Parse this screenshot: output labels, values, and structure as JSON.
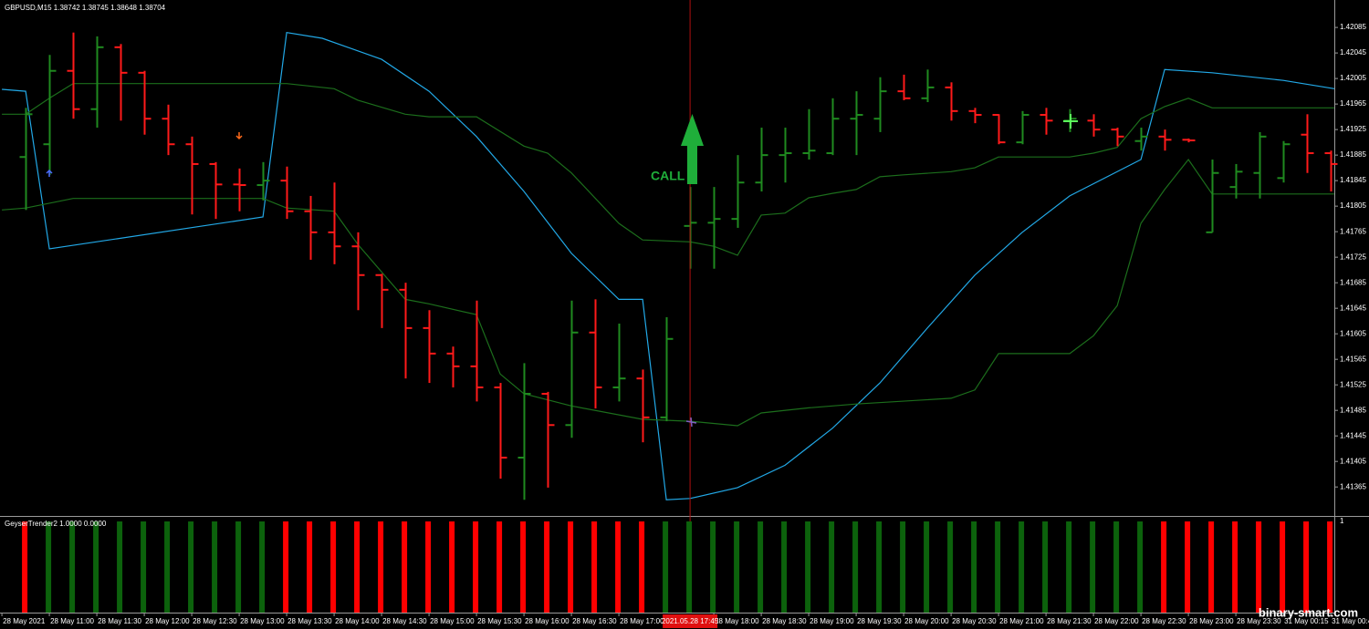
{
  "chart_data": [
    {
      "type": "ohlc",
      "title": "GBPUSD,M15  1.38742 1.38745 1.38648 1.38704",
      "up_color": "#1f8a1f",
      "down_color": "#ff1a1a",
      "xlim": [
        -1.08,
        55.15
      ],
      "ylim": [
        1.41321,
        1.42128
      ],
      "yticks": [
        1.42085,
        1.42045,
        1.42005,
        1.41965,
        1.41925,
        1.41885,
        1.41845,
        1.41805,
        1.41765,
        1.41725,
        1.41685,
        1.41645,
        1.41605,
        1.41565,
        1.41525,
        1.41485,
        1.41445,
        1.41405,
        1.41365
      ],
      "xticks": [
        {
          "value": -1,
          "label": "28 May 2021"
        },
        {
          "value": 1,
          "label": "28 May 11:00"
        },
        {
          "value": 3,
          "label": "28 May 11:30"
        },
        {
          "value": 5,
          "label": "28 May 12:00"
        },
        {
          "value": 7,
          "label": "28 May 12:30"
        },
        {
          "value": 9,
          "label": "28 May 13:00"
        },
        {
          "value": 11,
          "label": "28 May 13:30"
        },
        {
          "value": 13,
          "label": "28 May 14:00"
        },
        {
          "value": 15,
          "label": "28 May 14:30"
        },
        {
          "value": 17,
          "label": "28 May 15:00"
        },
        {
          "value": 19,
          "label": "28 May 15:30"
        },
        {
          "value": 21,
          "label": "28 May 16:00"
        },
        {
          "value": 23,
          "label": "28 May 16:30"
        },
        {
          "value": 25,
          "label": "28 May 17:00"
        },
        {
          "value": 29,
          "label": "28 May 18:00"
        },
        {
          "value": 31,
          "label": "28 May 18:30"
        },
        {
          "value": 33,
          "label": "28 May 19:00"
        },
        {
          "value": 35,
          "label": "28 May 19:30"
        },
        {
          "value": 37,
          "label": "28 May 20:00"
        },
        {
          "value": 39,
          "label": "28 May 20:30"
        },
        {
          "value": 41,
          "label": "28 May 21:00"
        },
        {
          "value": 43,
          "label": "28 May 21:30"
        },
        {
          "value": 45,
          "label": "28 May 22:00"
        },
        {
          "value": 47,
          "label": "28 May 22:30"
        },
        {
          "value": 49,
          "label": "28 May 23:00"
        },
        {
          "value": 51,
          "label": "28 May 23:30"
        },
        {
          "value": 53,
          "label": "31 May 00:15"
        },
        {
          "value": 55,
          "label": "31 May 00:45"
        }
      ],
      "open": [
        1.41882,
        1.41902,
        1.42017,
        1.41957,
        1.42054,
        1.42014,
        1.41942,
        1.41902,
        1.41871,
        1.41839,
        1.41838,
        1.41845,
        1.41797,
        1.41764,
        1.41742,
        1.41697,
        1.41674,
        1.41614,
        1.41574,
        1.41554,
        1.41521,
        1.41411,
        1.41511,
        1.41462,
        1.41607,
        1.41521,
        1.41535,
        1.41474,
        1.41774,
        1.41779,
        1.41785,
        1.41842,
        1.41885,
        1.41888,
        1.41888,
        1.41942,
        1.41942,
        1.41985,
        1.41974,
        1.41991,
        1.41954,
        1.41948,
        1.41905,
        1.41948,
        1.41939,
        1.41939,
        1.41925,
        1.41907,
        1.41914,
        1.41909,
        1.41764,
        1.41835,
        1.41857,
        1.41849,
        1.41917,
        1.41888
      ],
      "high": [
        1.41959,
        1.42042,
        1.42077,
        1.42071,
        1.42059,
        1.42017,
        1.41964,
        1.41914,
        1.41874,
        1.41864,
        1.41874,
        1.41867,
        1.41821,
        1.41842,
        1.41764,
        1.41699,
        1.41685,
        1.41642,
        1.41585,
        1.41657,
        1.41528,
        1.41559,
        1.41514,
        1.41657,
        1.41659,
        1.41621,
        1.41549,
        1.41631,
        1.41835,
        1.41835,
        1.41885,
        1.41928,
        1.41928,
        1.41957,
        1.41974,
        1.41985,
        1.42007,
        1.42011,
        1.42019,
        1.41999,
        1.41959,
        1.41949,
        1.41954,
        1.41959,
        1.41957,
        1.41949,
        1.41928,
        1.41928,
        1.41925,
        1.41911,
        1.41878,
        1.41871,
        1.41921,
        1.41907,
        1.41949,
        1.41892
      ],
      "low": [
        1.41799,
        1.41854,
        1.41942,
        1.41928,
        1.41939,
        1.41917,
        1.41885,
        1.41792,
        1.41785,
        1.41797,
        1.41814,
        1.41785,
        1.41721,
        1.41714,
        1.41642,
        1.41614,
        1.41535,
        1.41528,
        1.41521,
        1.41499,
        1.41378,
        1.41345,
        1.41364,
        1.41442,
        1.41488,
        1.41499,
        1.41435,
        1.41468,
        1.41707,
        1.41707,
        1.41771,
        1.41828,
        1.41842,
        1.41878,
        1.41885,
        1.41885,
        1.41921,
        1.41971,
        1.41968,
        1.41939,
        1.41935,
        1.41902,
        1.41902,
        1.41917,
        1.41921,
        1.41914,
        1.41899,
        1.41892,
        1.41892,
        1.41905,
        1.41764,
        1.41817,
        1.41817,
        1.41842,
        1.41857,
        1.41828
      ],
      "close": [
        1.41949,
        1.42017,
        1.41957,
        1.42054,
        1.42014,
        1.41942,
        1.41902,
        1.41871,
        1.41839,
        1.41838,
        1.41845,
        1.41797,
        1.41764,
        1.41742,
        1.41697,
        1.41674,
        1.41614,
        1.41574,
        1.41554,
        1.41521,
        1.41411,
        1.41511,
        1.41462,
        1.41607,
        1.41521,
        1.41535,
        1.41474,
        1.41597,
        1.41779,
        1.41785,
        1.41842,
        1.41885,
        1.41888,
        1.41892,
        1.41942,
        1.41948,
        1.41985,
        1.41974,
        1.41991,
        1.41954,
        1.41948,
        1.41905,
        1.41948,
        1.41939,
        1.41942,
        1.41925,
        1.41914,
        1.41914,
        1.41909,
        1.41908,
        1.41857,
        1.41859,
        1.41914,
        1.41902,
        1.41888,
        1.41871
      ],
      "series": [
        {
          "color": "#22a8e6",
          "x": [
            -1,
            0,
            1,
            10,
            11,
            12.5,
            15,
            17,
            19,
            21,
            23,
            25,
            26,
            27,
            28,
            30,
            32,
            34,
            36,
            38,
            40,
            42,
            44,
            47,
            48,
            50,
            53,
            55.15
          ],
          "values": [
            1.41988,
            1.41985,
            1.41738,
            1.41788,
            1.42077,
            1.42068,
            1.42035,
            1.41985,
            1.41914,
            1.41828,
            1.41731,
            1.41659,
            1.41659,
            1.41345,
            1.41347,
            1.41364,
            1.41399,
            1.41457,
            1.41528,
            1.41614,
            1.41697,
            1.41764,
            1.41821,
            1.41878,
            1.42019,
            1.42014,
            1.42002,
            1.41989
          ]
        },
        {
          "color": "#1c6e1c",
          "x": [
            -1,
            0,
            1,
            2,
            10,
            11,
            13,
            14,
            16,
            17,
            19,
            21,
            22,
            23,
            25,
            26,
            28,
            29,
            30,
            31,
            32,
            33,
            34,
            35,
            36,
            37,
            39,
            40,
            41,
            44,
            45,
            46,
            47,
            48,
            49,
            50,
            55.15
          ],
          "values": [
            1.41949,
            1.41949,
            1.41974,
            1.41997,
            1.41997,
            1.41997,
            1.41989,
            1.41971,
            1.41949,
            1.41945,
            1.41945,
            1.41899,
            1.41888,
            1.41857,
            1.41778,
            1.41752,
            1.41749,
            1.41742,
            1.41728,
            1.41791,
            1.41794,
            1.41818,
            1.41825,
            1.41831,
            1.41851,
            1.41854,
            1.41859,
            1.41865,
            1.41882,
            1.41882,
            1.41888,
            1.41897,
            1.41942,
            1.41961,
            1.41974,
            1.41959,
            1.41959
          ]
        },
        {
          "color": "#1c6e1c",
          "x": [
            -1,
            0,
            2,
            10,
            11,
            13,
            14,
            16,
            17,
            19,
            20,
            21,
            23,
            26,
            28,
            30,
            31,
            33,
            35,
            39,
            40,
            41,
            44,
            45,
            46,
            47,
            48,
            49,
            50,
            55.15
          ],
          "values": [
            1.41799,
            1.41802,
            1.41817,
            1.41817,
            1.41802,
            1.41797,
            1.41745,
            1.41659,
            1.41652,
            1.41635,
            1.41542,
            1.41511,
            1.41492,
            1.41471,
            1.41468,
            1.41461,
            1.41481,
            1.41489,
            1.41495,
            1.41504,
            1.41517,
            1.41574,
            1.41574,
            1.41602,
            1.41649,
            1.41778,
            1.41831,
            1.41878,
            1.41824,
            1.41824
          ]
        }
      ],
      "cursor": {
        "x": 28,
        "label": "2021.05.28 17:45"
      },
      "annotation": "CALL"
    },
    {
      "type": "bar",
      "title": "GeyserTrender2 1.0000 0.0000",
      "ylim": [
        0,
        1
      ],
      "yticks": [
        1
      ],
      "xlim": [
        -1.08,
        55.15
      ],
      "values": [
        1,
        1,
        1,
        1,
        1,
        1,
        1,
        1,
        1,
        1,
        1,
        1,
        1,
        1,
        1,
        1,
        1,
        1,
        1,
        1,
        1,
        1,
        1,
        1,
        1,
        1,
        1,
        1,
        1,
        1,
        1,
        1,
        1,
        1,
        1,
        1,
        1,
        1,
        1,
        1,
        1,
        1,
        1,
        1,
        1,
        1,
        1,
        1,
        1,
        1,
        1,
        1,
        1,
        1,
        1,
        1
      ],
      "colors": [
        "#ff0000",
        "#0c620c",
        "#0c620c",
        "#0c620c",
        "#0c620c",
        "#0c620c",
        "#0c620c",
        "#0c620c",
        "#0c620c",
        "#0c620c",
        "#0c620c",
        "#ff0000",
        "#ff0000",
        "#ff0000",
        "#ff0000",
        "#ff0000",
        "#ff0000",
        "#ff0000",
        "#ff0000",
        "#ff0000",
        "#ff0000",
        "#ff0000",
        "#ff0000",
        "#ff0000",
        "#ff0000",
        "#ff0000",
        "#ff0000",
        "#0c620c",
        "#0c620c",
        "#0c620c",
        "#0c620c",
        "#0c620c",
        "#0c620c",
        "#0c620c",
        "#0c620c",
        "#0c620c",
        "#0c620c",
        "#0c620c",
        "#0c620c",
        "#0c620c",
        "#0c620c",
        "#0c620c",
        "#0c620c",
        "#0c620c",
        "#0c620c",
        "#0c620c",
        "#0c620c",
        "#0c620c",
        "#ff0000",
        "#ff0000",
        "#ff0000",
        "#ff0000",
        "#ff0000",
        "#ff0000",
        "#ff0000",
        "#ff0000"
      ]
    }
  ],
  "watermark": "binary-smart.com"
}
